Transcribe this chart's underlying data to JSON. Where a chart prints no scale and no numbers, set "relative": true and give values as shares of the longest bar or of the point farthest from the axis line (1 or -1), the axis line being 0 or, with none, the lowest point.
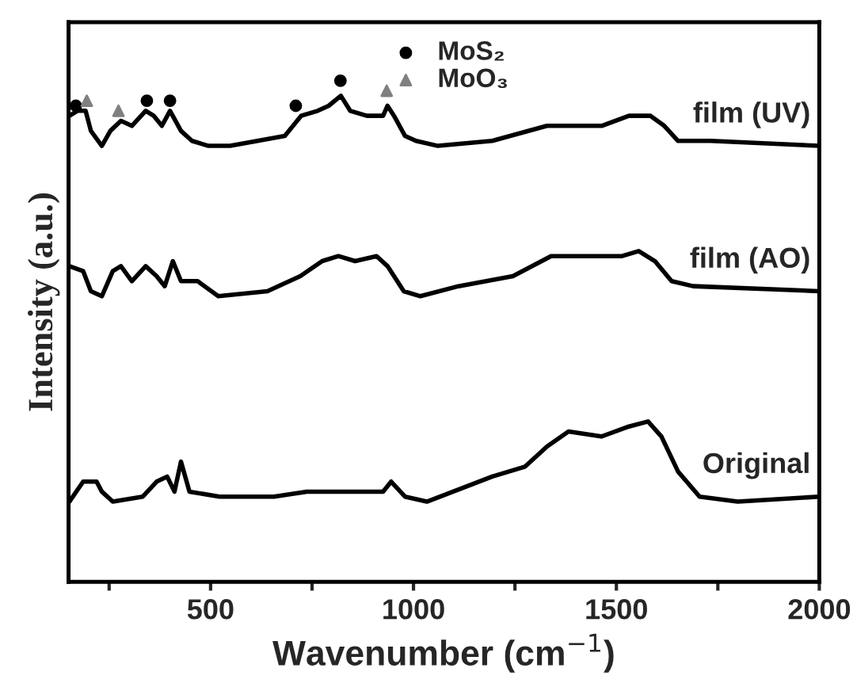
{
  "chart_data": {
    "type": "line",
    "relative": true,
    "xlabel": "Wavenumber (cm$^{−1}$)",
    "ylabel": "Intensity (a.u.)",
    "xlim": [
      150,
      2000
    ],
    "xticks": [
      {
        "value": 250,
        "label": null
      },
      500,
      {
        "value": 750,
        "label": null
      },
      1000,
      {
        "value": 1250,
        "label": null
      },
      1500,
      {
        "value": 1750,
        "label": null
      },
      2000
    ],
    "tick_labels": "x",
    "grid": false,
    "legend": "top",
    "line_style": "solid",
    "marker": "none",
    "series": [
      {
        "name": "film (UV)",
        "color": "#000000",
        "x": [
          152,
          172,
          192,
          205,
          232,
          253,
          279,
          306,
          340,
          360,
          380,
          400,
          427,
          454,
          495,
          548,
          616,
          683,
          723,
          764,
          791,
          821,
          844,
          885,
          925,
          936,
          952,
          979,
          1006,
          1060,
          1194,
          1329,
          1397,
          1464,
          1531,
          1584,
          1618,
          1652,
          1732,
          2000
        ],
        "values": [
          0.93,
          0.94,
          0.94,
          0.9,
          0.87,
          0.9,
          0.92,
          0.91,
          0.94,
          0.93,
          0.91,
          0.94,
          0.9,
          0.88,
          0.87,
          0.87,
          0.88,
          0.89,
          0.93,
          0.94,
          0.95,
          0.97,
          0.94,
          0.93,
          0.93,
          0.95,
          0.93,
          0.89,
          0.88,
          0.87,
          0.88,
          0.91,
          0.91,
          0.91,
          0.93,
          0.93,
          0.91,
          0.88,
          0.88,
          0.87
        ]
      },
      {
        "name": "film (AO)",
        "color": "#000000",
        "x": [
          152,
          186,
          205,
          232,
          259,
          279,
          306,
          340,
          367,
          387,
          407,
          427,
          468,
          519,
          640,
          721,
          775,
          815,
          856,
          909,
          936,
          976,
          1017,
          1111,
          1245,
          1339,
          1447,
          1514,
          1555,
          1595,
          1636,
          1689,
          2000
        ],
        "values": [
          0.63,
          0.62,
          0.58,
          0.57,
          0.62,
          0.63,
          0.6,
          0.63,
          0.61,
          0.59,
          0.64,
          0.6,
          0.6,
          0.57,
          0.58,
          0.61,
          0.64,
          0.65,
          0.64,
          0.65,
          0.63,
          0.58,
          0.57,
          0.59,
          0.61,
          0.65,
          0.65,
          0.65,
          0.66,
          0.64,
          0.6,
          0.59,
          0.58
        ]
      },
      {
        "name": "Original",
        "color": "#000000",
        "x": [
          152,
          186,
          219,
          232,
          259,
          333,
          367,
          393,
          411,
          427,
          448,
          522,
          656,
          737,
          925,
          945,
          979,
          1033,
          1194,
          1275,
          1329,
          1382,
          1463,
          1531,
          1578,
          1611,
          1652,
          1705,
          1799,
          2000
        ],
        "values": [
          0.16,
          0.2,
          0.2,
          0.18,
          0.16,
          0.17,
          0.2,
          0.21,
          0.18,
          0.24,
          0.18,
          0.17,
          0.17,
          0.18,
          0.18,
          0.2,
          0.17,
          0.16,
          0.21,
          0.23,
          0.27,
          0.3,
          0.29,
          0.31,
          0.32,
          0.29,
          0.22,
          0.17,
          0.16,
          0.17
        ]
      },
      {
        "name": "MoS₂",
        "type": "scatter",
        "marker": "circle",
        "color": "#000000",
        "x": [
          168,
          343,
          400,
          710,
          820
        ],
        "values": [
          0.95,
          0.96,
          0.96,
          0.95,
          1.0
        ]
      },
      {
        "name": "MoO₃",
        "type": "scatter",
        "marker": "triangle",
        "color": "#808080",
        "x": [
          195,
          273,
          934
        ],
        "values": [
          0.96,
          0.94,
          0.98
        ]
      }
    ]
  }
}
